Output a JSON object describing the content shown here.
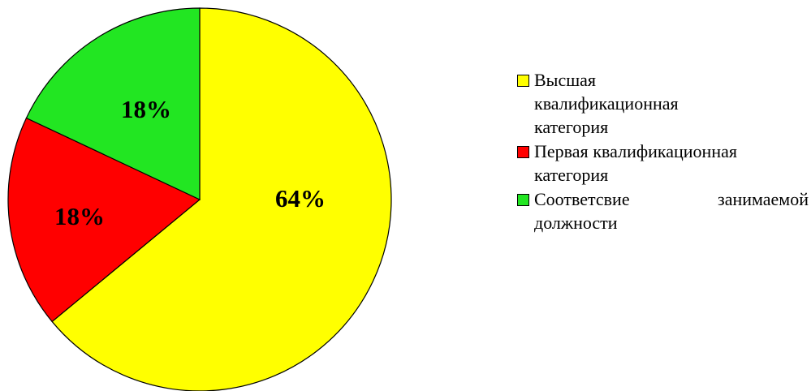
{
  "chart_data": {
    "type": "pie",
    "categories": [
      "Высшая квалификационная категория",
      "Первая квалификационная категория",
      "Соответсвие занимаемой должности"
    ],
    "values": [
      64,
      18,
      18
    ],
    "value_labels": [
      "64%",
      "18%",
      "18%"
    ],
    "colors": [
      "#ffff00",
      "#ff0000",
      "#22e622"
    ],
    "legend": "right"
  }
}
